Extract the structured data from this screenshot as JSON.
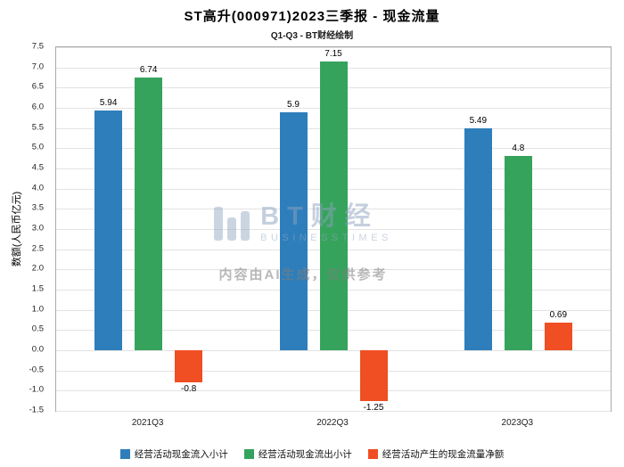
{
  "header": {
    "title": "ST高升(000971)2023三季报 - 现金流量",
    "subtitle": "Q1-Q3 - BT财经绘制"
  },
  "chart_data": {
    "type": "bar",
    "title": "ST高升(000971)2023三季报 - 现金流量",
    "subtitle": "Q1-Q3 - BT财经绘制",
    "categories": [
      "2021Q3",
      "2022Q3",
      "2023Q3"
    ],
    "series": [
      {
        "name": "经营活动现金流入小计",
        "color": "#2E7EBB",
        "values": [
          5.94,
          5.9,
          5.49
        ]
      },
      {
        "name": "经营活动现金流出小计",
        "color": "#36A35D",
        "values": [
          6.74,
          7.15,
          4.8
        ]
      },
      {
        "name": "经营活动产生的现金流量净额",
        "color": "#F04E23",
        "values": [
          -0.8,
          -1.25,
          0.69
        ]
      }
    ],
    "xlabel": "",
    "ylabel": "数额(人民币亿元)",
    "ylim": [
      -1.5,
      7.5
    ],
    "ytick_step": 0.5,
    "grid": true,
    "legend_position": "bottom"
  },
  "watermark": {
    "logo_text": "BT财经",
    "logo_sub": "BUSINESSTIMES",
    "ai_note": "内容由AI生成，仅供参考"
  }
}
